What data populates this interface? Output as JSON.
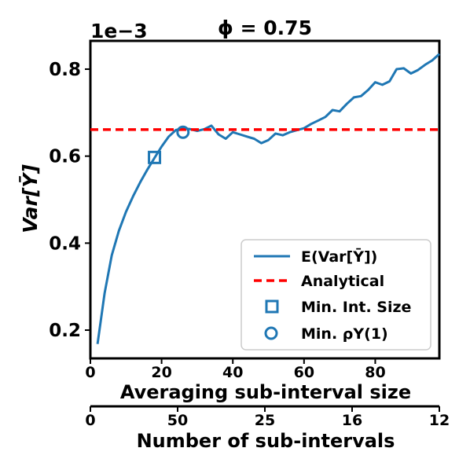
{
  "chart_data": {
    "type": "line",
    "title": "ϕ = 0.75",
    "scale_label": "1e−3",
    "xlabel": "Averaging sub-interval size",
    "ylabel": "Var[Ȳ]",
    "xlim": [
      0,
      98
    ],
    "ylim": [
      0.135,
      0.865
    ],
    "grid": false,
    "legend_position": "lower-right",
    "xticks": [
      0,
      20,
      40,
      60,
      80
    ],
    "yticks": [
      0.2,
      0.4,
      0.6,
      0.8
    ],
    "xtick_labels": [
      "0",
      "20",
      "40",
      "60",
      "80"
    ],
    "ytick_labels": [
      "0.2",
      "0.4",
      "0.6",
      "0.8"
    ],
    "secondary_xaxis": {
      "label": "Number of sub-intervals",
      "tick_labels": [
        "0",
        "50",
        "25",
        "16",
        "12"
      ]
    },
    "series": [
      {
        "name": "E(Var[Ȳ])",
        "style": "solid",
        "color": "#1f77b4",
        "x": [
          2,
          4,
          6,
          8,
          10,
          12,
          14,
          16,
          18,
          20,
          22,
          24,
          26,
          28,
          30,
          32,
          34,
          36,
          38,
          40,
          42,
          44,
          46,
          48,
          50,
          52,
          54,
          56,
          58,
          60,
          62,
          64,
          66,
          68,
          70,
          72,
          74,
          76,
          78,
          80,
          82,
          84,
          86,
          88,
          90,
          92,
          94,
          96,
          98
        ],
        "y": [
          0.168,
          0.285,
          0.372,
          0.428,
          0.472,
          0.508,
          0.54,
          0.569,
          0.596,
          0.622,
          0.645,
          0.66,
          0.664,
          0.662,
          0.658,
          0.662,
          0.67,
          0.65,
          0.64,
          0.655,
          0.65,
          0.645,
          0.64,
          0.63,
          0.637,
          0.652,
          0.648,
          0.655,
          0.66,
          0.664,
          0.674,
          0.682,
          0.69,
          0.706,
          0.703,
          0.72,
          0.735,
          0.738,
          0.752,
          0.77,
          0.764,
          0.772,
          0.8,
          0.802,
          0.79,
          0.798,
          0.81,
          0.82,
          0.835
        ]
      },
      {
        "name": "Analytical",
        "style": "dashed",
        "color": "#ff0000",
        "y_constant": 0.661
      }
    ],
    "markers": [
      {
        "name": "Min. Int. Size",
        "shape": "square",
        "color": "#1f77b4",
        "x": 18,
        "y": 0.597
      },
      {
        "name": "Min. ρY(1)",
        "shape": "circle",
        "color": "#1f77b4",
        "x": 26,
        "y": 0.655
      }
    ],
    "legend": {
      "entries": [
        "E(Var[Ȳ])",
        "Analytical",
        "Min. Int. Size",
        "Min. ρY(1)"
      ]
    }
  }
}
